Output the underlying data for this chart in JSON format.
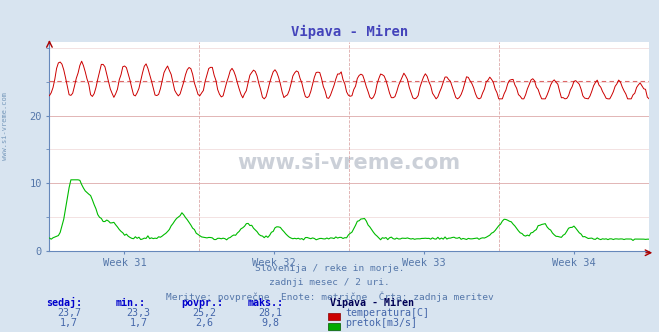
{
  "title": "Vipava - Miren",
  "title_color": "#4444bb",
  "bg_color": "#d8e4f0",
  "plot_bg_color": "#ffffff",
  "grid_color": "#ddaaaa",
  "grid_color_main": "#ccaaaa",
  "x_tick_labels": [
    "Week 31",
    "Week 32",
    "Week 33",
    "Week 34"
  ],
  "x_tick_positions": [
    0.125,
    0.375,
    0.625,
    0.875
  ],
  "x_vline_positions": [
    0.0,
    0.25,
    0.5,
    0.75,
    1.0
  ],
  "y_ticks": [
    0,
    10,
    20
  ],
  "ylim": [
    0,
    31
  ],
  "xlim": [
    0,
    1
  ],
  "temp_min": 23.3,
  "temp_max": 28.1,
  "temp_avg": 25.2,
  "temp_current": 23.7,
  "flow_min": 1.7,
  "flow_max": 9.8,
  "flow_avg": 2.6,
  "flow_current": 1.7,
  "temp_color": "#cc0000",
  "flow_color": "#00bb00",
  "avg_line_color": "#dd6666",
  "axis_color": "#6688bb",
  "tick_color": "#5577aa",
  "subtitle_color": "#5577aa",
  "subtitle_lines": [
    "Slovenija / reke in morje.",
    "zadnji mesec / 2 uri.",
    "Meritve: povprečne  Enote: metrične  Črta: zadnja meritev"
  ],
  "label_color": "#4466aa",
  "legend_title": "Vipava - Miren",
  "legend_entries": [
    "temperatura[C]",
    "pretok[m3/s]"
  ],
  "legend_colors": [
    "#cc0000",
    "#00aa00"
  ],
  "table_labels": [
    "sedaj:",
    "min.:",
    "povpr.:",
    "maks.:"
  ],
  "table_values_temp": [
    "23,7",
    "23,3",
    "25,2",
    "28,1"
  ],
  "table_values_flow": [
    "1,7",
    "1,7",
    "2,6",
    "9,8"
  ],
  "watermark": "www.si-vreme.com",
  "left_label": "www.si-vreme.com"
}
